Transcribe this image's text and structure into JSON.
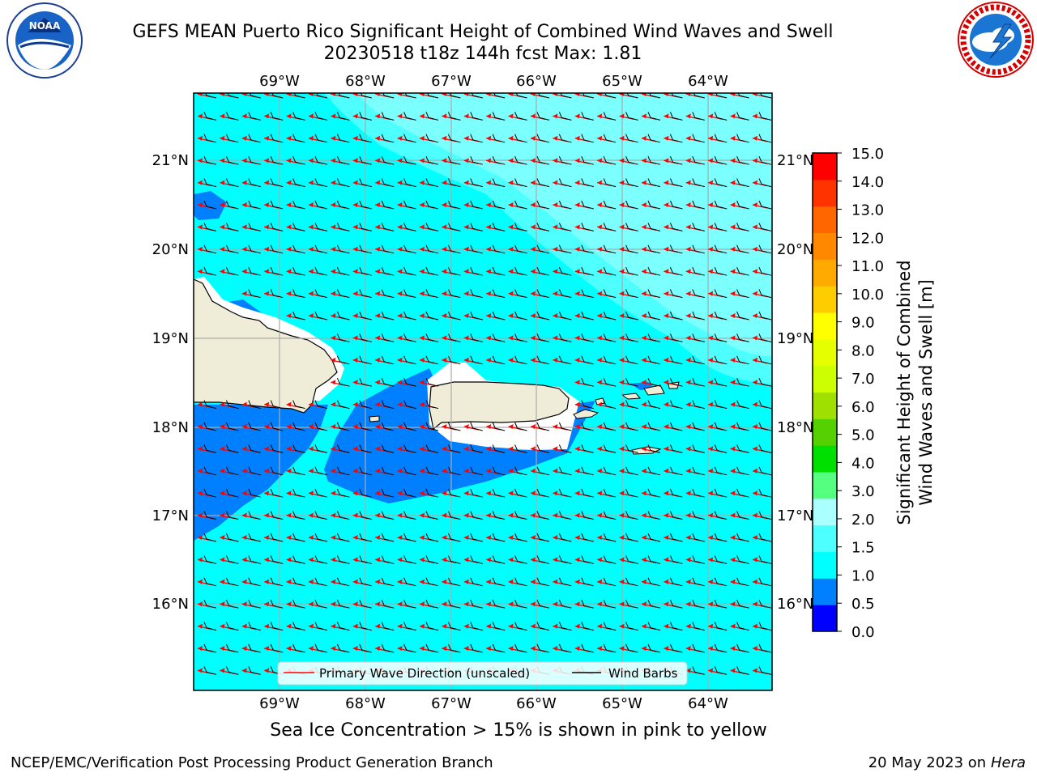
{
  "header": {
    "title_line1": "GEFS MEAN Puerto Rico Significant Height of Combined Wind Waves and Swell",
    "title_line2": "20230518 t18z 144h fcst   Max: 1.81"
  },
  "logos": {
    "left": {
      "name": "NOAA",
      "ring_text": "NATIONAL OCEANIC AND ATMOSPHERIC ADMINISTRATION · U.S. DEPARTMENT OF COMMERCE"
    },
    "right": {
      "name": "NATIONAL WEATHER SERVICE"
    }
  },
  "map": {
    "lon_labels": [
      "69°W",
      "68°W",
      "67°W",
      "66°W",
      "65°W",
      "64°W"
    ],
    "lat_labels": [
      "21°N",
      "20°N",
      "19°N",
      "18°N",
      "17°N",
      "16°N"
    ],
    "legend": {
      "wave_label": "Primary Wave Direction (unscaled)",
      "wave_color": "#ff0000",
      "barb_label": "Wind Barbs",
      "barb_color": "#000000"
    },
    "colors": {
      "ocean_base": "#00ffff",
      "ocean_mid": "#4dffff",
      "ocean_high": "#aaffff",
      "low": "#0080ff",
      "land": "#efedd8"
    }
  },
  "colorbar": {
    "label_line1": "Significant Height of Combined",
    "label_line2": "Wind Waves and Swell [m]",
    "ticks": [
      "15.0",
      "14.0",
      "13.0",
      "12.0",
      "11.0",
      "10.0",
      "9.0",
      "8.0",
      "7.0",
      "6.0",
      "5.0",
      "4.0",
      "3.0",
      "2.0",
      "1.5",
      "1.0",
      "0.5",
      "0.0"
    ],
    "colors_bottom_to_top": [
      "#0000ff",
      "#0080ff",
      "#00ffff",
      "#4dffff",
      "#aaffff",
      "#55ff80",
      "#00e000",
      "#55d000",
      "#a0e000",
      "#ccff00",
      "#e6ff00",
      "#ffff00",
      "#ffcc00",
      "#ffaa00",
      "#ff8800",
      "#ff6600",
      "#ff3300",
      "#ff0000"
    ]
  },
  "footer": {
    "note": "Sea Ice Concentration > 15% is shown in pink to yellow",
    "credit": "NCEP/EMC/Verification Post Processing Product Generation Branch",
    "date_text": "20 May 2023 on",
    "date_host": "Hera"
  }
}
